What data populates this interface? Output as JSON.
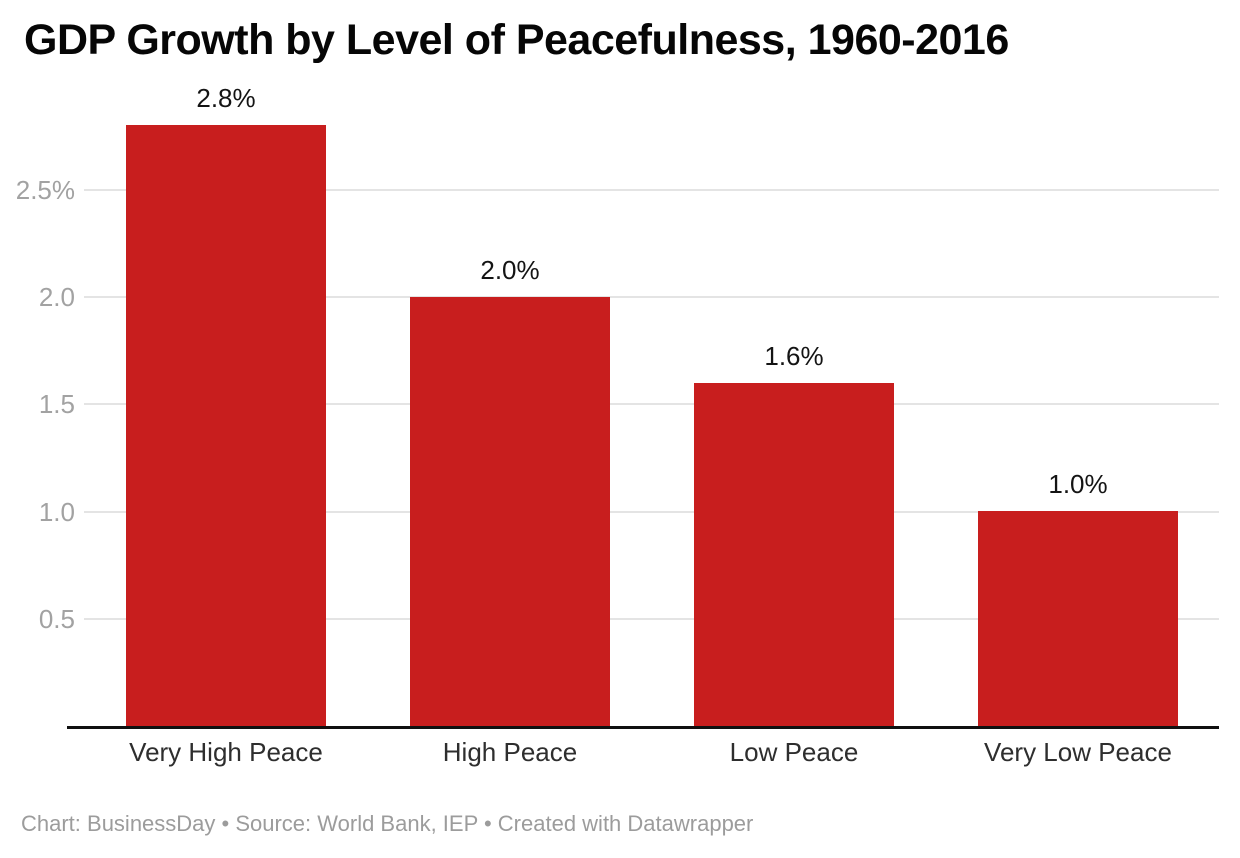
{
  "chart": {
    "title": "GDP Growth by Level of Peacefulness, 1960-2016",
    "footer": "Chart: BusinessDay • Source: World Bank, IEP • Created with Datawrapper"
  },
  "chart_data": {
    "type": "bar",
    "title": "GDP Growth by Level of Peacefulness, 1960-2016",
    "categories": [
      "Very High Peace",
      "High Peace",
      "Low Peace",
      "Very Low Peace"
    ],
    "values": [
      2.8,
      2.0,
      1.6,
      1.0
    ],
    "value_labels": [
      "2.8%",
      "2.0%",
      "1.6%",
      "1.0%"
    ],
    "unit": "percent",
    "xlabel": "",
    "ylabel": "",
    "ylim": [
      0,
      2.9
    ],
    "yticks": [
      {
        "value": 0.5,
        "label": "0.5"
      },
      {
        "value": 1.0,
        "label": "1.0"
      },
      {
        "value": 1.5,
        "label": "1.5"
      },
      {
        "value": 2.0,
        "label": "2.0"
      },
      {
        "value": 2.5,
        "label": "2.5%"
      }
    ],
    "grid": "horizontal",
    "legend": "none",
    "bar_color": "#c81e1e",
    "chart_credit": "BusinessDay",
    "source_credit": "World Bank, IEP",
    "tool_credit": "Created with Datawrapper"
  }
}
